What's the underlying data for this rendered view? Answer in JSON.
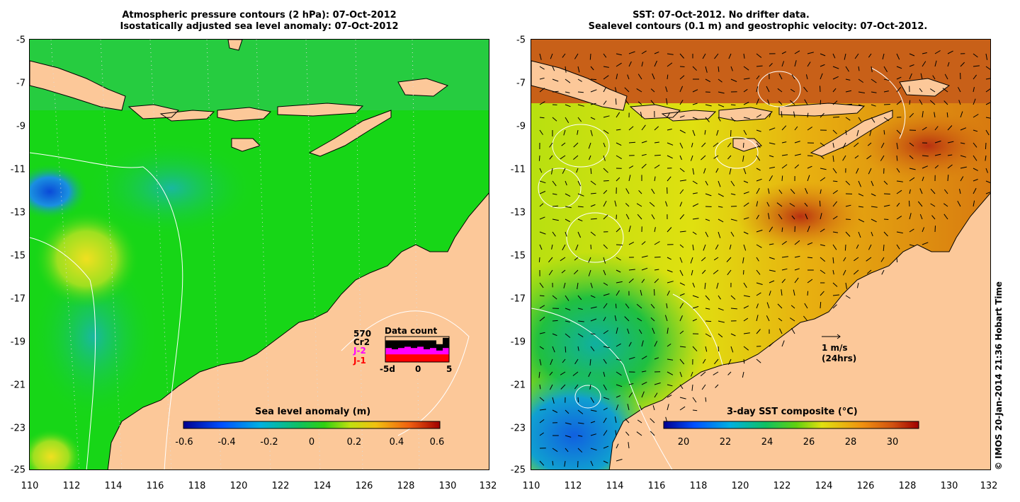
{
  "left_panel": {
    "title_line1": "Atmospheric pressure contours (2 hPa): 07-Oct-2012",
    "title_line2": "Isostatically adjusted sea level anomaly: 07-Oct-2012",
    "x_ticks": [
      "110",
      "112",
      "114",
      "116",
      "118",
      "120",
      "122",
      "124",
      "126",
      "128",
      "130",
      "132"
    ],
    "y_ticks": [
      "-5",
      "-7",
      "-9",
      "-11",
      "-13",
      "-15",
      "-17",
      "-19",
      "-21",
      "-23",
      "-25"
    ],
    "colorbar_title": "Sea level anomaly (m)",
    "colorbar_ticks": [
      "-0.6",
      "-0.4",
      "-0.2",
      "0",
      "0.2",
      "0.4",
      "0.6"
    ],
    "inset": {
      "count": "570",
      "label_cr2": "Cr2",
      "label_j2": "J-2",
      "label_j1": "J-1",
      "title": "Data count",
      "x_ticks": [
        "-5d",
        "0",
        "5"
      ],
      "colors": {
        "cr2": "#000000",
        "j2": "#ff00ff",
        "j1": "#ff0000"
      },
      "j1_levels": [
        0.3,
        0.3,
        0.3,
        0.3,
        0.3,
        0.3,
        0.3,
        0.3,
        0.3,
        0.3
      ],
      "j2_levels": [
        0.55,
        0.5,
        0.55,
        0.6,
        0.55,
        0.6,
        0.5,
        0.55,
        0.45,
        0.55
      ],
      "cr2_levels": [
        0.85,
        0.85,
        0.85,
        0.85,
        0.85,
        0.85,
        0.85,
        0.85,
        0.7,
        0.95
      ]
    }
  },
  "right_panel": {
    "title_line1": "SST: 07-Oct-2012. No drifter data.",
    "title_line2": "Sealevel contours (0.1 m) and geostrophic velocity: 07-Oct-2012.",
    "x_ticks": [
      "110",
      "112",
      "114",
      "116",
      "118",
      "120",
      "122",
      "124",
      "126",
      "128",
      "130",
      "132"
    ],
    "y_ticks": [
      "-5",
      "-7",
      "-9",
      "-11",
      "-13",
      "-15",
      "-17",
      "-19",
      "-21",
      "-23",
      "-25"
    ],
    "colorbar_title": "3-day SST composite (°C)",
    "colorbar_ticks": [
      "20",
      "22",
      "24",
      "26",
      "28",
      "30"
    ],
    "scale_label_line1": "1 m/s",
    "scale_label_line2": "(24hrs)"
  },
  "credit": "© IMOS 20-Jan-2014 21:36 Hobart Time",
  "colors": {
    "land": "#fcc899",
    "ocean_green": "#17d617",
    "sst_orange": "#d87a10",
    "sst_yellow": "#d8e010"
  }
}
